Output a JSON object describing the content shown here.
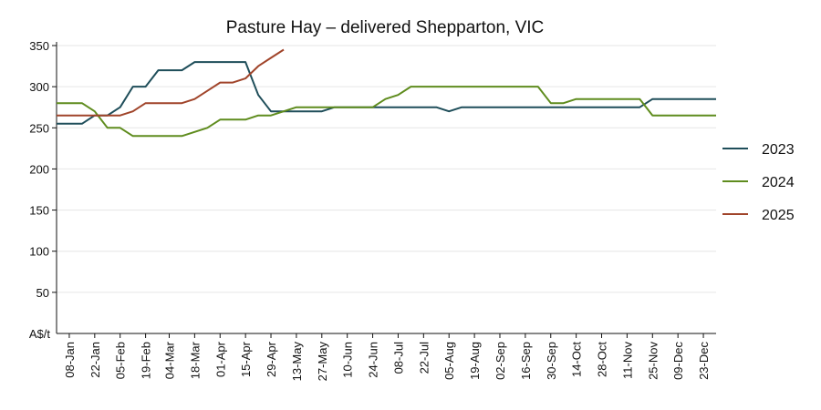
{
  "chart_data": {
    "type": "line",
    "title": "Pasture Hay – delivered Shepparton, VIC",
    "ylabel": "A$/t",
    "ylim": [
      0,
      350
    ],
    "yticks": [
      50,
      100,
      150,
      200,
      250,
      300,
      350
    ],
    "x_start": "01-Jan",
    "x_end": "30-Dec",
    "xticks": [
      "08-Jan",
      "22-Jan",
      "05-Feb",
      "19-Feb",
      "04-Mar",
      "18-Mar",
      "01-Apr",
      "15-Apr",
      "29-Apr",
      "13-May",
      "27-May",
      "10-Jun",
      "24-Jun",
      "08-Jul",
      "22-Jul",
      "05-Aug",
      "19-Aug",
      "02-Sep",
      "16-Sep",
      "30-Sep",
      "14-Oct",
      "28-Oct",
      "11-Nov",
      "25-Nov",
      "09-Dec",
      "23-Dec"
    ],
    "grid": true,
    "legend": "right",
    "series": [
      {
        "name": "2023",
        "color": "#1f4e5a",
        "points": [
          [
            "01-Jan",
            255
          ],
          [
            "15-Jan",
            255
          ],
          [
            "22-Jan",
            265
          ],
          [
            "29-Jan",
            265
          ],
          [
            "05-Feb",
            275
          ],
          [
            "12-Feb",
            300
          ],
          [
            "19-Feb",
            300
          ],
          [
            "26-Feb",
            320
          ],
          [
            "11-Mar",
            320
          ],
          [
            "18-Mar",
            330
          ],
          [
            "15-Apr",
            330
          ],
          [
            "22-Apr",
            290
          ],
          [
            "29-Apr",
            270
          ],
          [
            "27-May",
            270
          ],
          [
            "03-Jun",
            275
          ],
          [
            "29-Jul",
            275
          ],
          [
            "05-Aug",
            270
          ],
          [
            "12-Aug",
            275
          ],
          [
            "18-Nov",
            275
          ],
          [
            "25-Nov",
            285
          ],
          [
            "30-Dec",
            285
          ]
        ]
      },
      {
        "name": "2024",
        "color": "#5f8c1e",
        "points": [
          [
            "01-Jan",
            280
          ],
          [
            "15-Jan",
            280
          ],
          [
            "22-Jan",
            270
          ],
          [
            "29-Jan",
            250
          ],
          [
            "05-Feb",
            250
          ],
          [
            "12-Feb",
            240
          ],
          [
            "04-Mar",
            240
          ],
          [
            "11-Mar",
            240
          ],
          [
            "25-Mar",
            250
          ],
          [
            "01-Apr",
            260
          ],
          [
            "15-Apr",
            260
          ],
          [
            "22-Apr",
            265
          ],
          [
            "29-Apr",
            265
          ],
          [
            "13-May",
            275
          ],
          [
            "24-Jun",
            275
          ],
          [
            "01-Jul",
            285
          ],
          [
            "08-Jul",
            290
          ],
          [
            "15-Jul",
            300
          ],
          [
            "23-Sep",
            300
          ],
          [
            "30-Sep",
            280
          ],
          [
            "07-Oct",
            280
          ],
          [
            "14-Oct",
            285
          ],
          [
            "18-Nov",
            285
          ],
          [
            "25-Nov",
            265
          ],
          [
            "30-Dec",
            265
          ]
        ]
      },
      {
        "name": "2025",
        "color": "#a0442a",
        "points": [
          [
            "01-Jan",
            265
          ],
          [
            "05-Feb",
            265
          ],
          [
            "12-Feb",
            270
          ],
          [
            "19-Feb",
            280
          ],
          [
            "11-Mar",
            280
          ],
          [
            "18-Mar",
            285
          ],
          [
            "25-Mar",
            295
          ],
          [
            "01-Apr",
            305
          ],
          [
            "08-Apr",
            305
          ],
          [
            "15-Apr",
            310
          ],
          [
            "22-Apr",
            325
          ],
          [
            "29-Apr",
            335
          ],
          [
            "06-May",
            345
          ]
        ]
      }
    ]
  }
}
